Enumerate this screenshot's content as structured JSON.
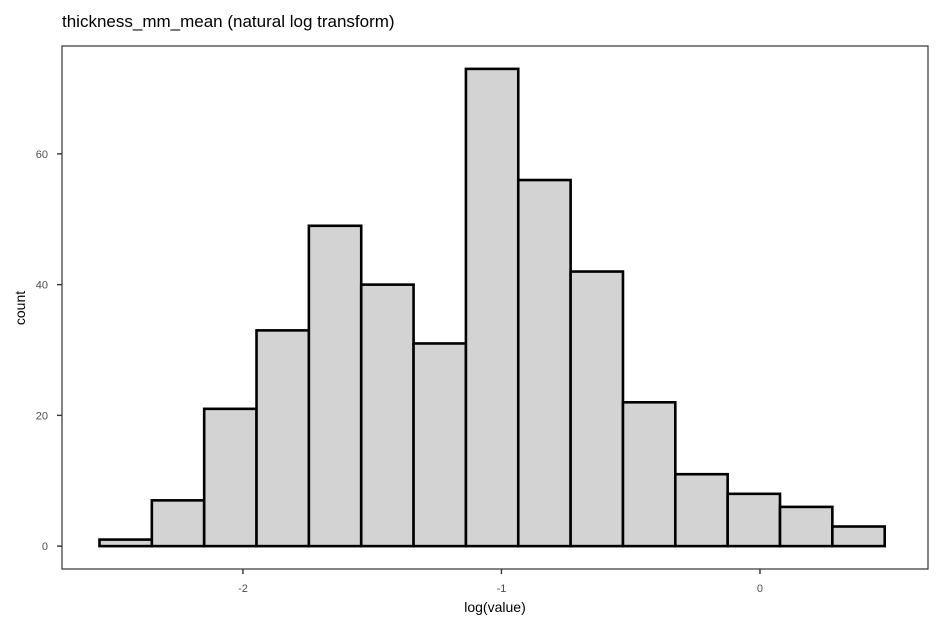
{
  "chart_data": {
    "type": "bar",
    "title": "thickness_mm_mean (natural log transform)",
    "xlabel": "log(value)",
    "ylabel": "count",
    "bin_width": 0.2025,
    "bins": [
      {
        "x_start": -2.555,
        "x_end": -2.3525,
        "count": 1
      },
      {
        "x_start": -2.3525,
        "x_end": -2.15,
        "count": 7
      },
      {
        "x_start": -2.15,
        "x_end": -1.9475,
        "count": 21
      },
      {
        "x_start": -1.9475,
        "x_end": -1.745,
        "count": 33
      },
      {
        "x_start": -1.745,
        "x_end": -1.5425,
        "count": 49
      },
      {
        "x_start": -1.5425,
        "x_end": -1.34,
        "count": 40
      },
      {
        "x_start": -1.34,
        "x_end": -1.1375,
        "count": 31
      },
      {
        "x_start": -1.1375,
        "x_end": -0.935,
        "count": 73
      },
      {
        "x_start": -0.935,
        "x_end": -0.7325,
        "count": 56
      },
      {
        "x_start": -0.7325,
        "x_end": -0.53,
        "count": 42
      },
      {
        "x_start": -0.53,
        "x_end": -0.3275,
        "count": 22
      },
      {
        "x_start": -0.3275,
        "x_end": -0.125,
        "count": 11
      },
      {
        "x_start": -0.125,
        "x_end": 0.0775,
        "count": 8
      },
      {
        "x_start": 0.0775,
        "x_end": 0.28,
        "count": 6
      },
      {
        "x_start": 0.28,
        "x_end": 0.4825,
        "count": 3
      }
    ],
    "xlim": [
      -2.7,
      0.65
    ],
    "ylim": [
      -3.5,
      76.5
    ],
    "x_ticks": [
      -2,
      -1,
      0
    ],
    "x_tick_labels": [
      "-2",
      "-1",
      "0"
    ],
    "y_ticks": [
      0,
      20,
      40,
      60
    ],
    "y_tick_labels": [
      "0",
      "20",
      "40",
      "60"
    ],
    "bar_fill": "#d3d3d3",
    "bar_stroke": "#000000",
    "grid": false,
    "legend": "none"
  }
}
